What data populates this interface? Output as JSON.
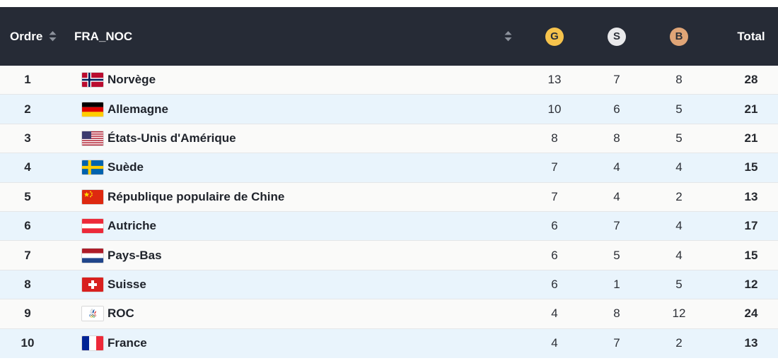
{
  "table": {
    "columns": {
      "rank_label": "Ordre",
      "country_label": "FRA_NOC",
      "gold_label": "G",
      "silver_label": "S",
      "bronze_label": "B",
      "total_label": "Total"
    },
    "colors": {
      "header_bg": "#262b36",
      "gold": "#f6c34c",
      "silver": "#e9e9eb",
      "bronze": "#e0a577",
      "row_odd_bg": "#fafaf9",
      "row_even_bg": "#e9f4fc"
    },
    "icons": {
      "sort": "sort-arrows-icon"
    },
    "rows": [
      {
        "rank": "1",
        "flag": "norway",
        "country": "Norvège",
        "gold": "13",
        "silver": "7",
        "bronze": "8",
        "total": "28"
      },
      {
        "rank": "2",
        "flag": "germany",
        "country": "Allemagne",
        "gold": "10",
        "silver": "6",
        "bronze": "5",
        "total": "21"
      },
      {
        "rank": "3",
        "flag": "usa",
        "country": "États-Unis d'Amérique",
        "gold": "8",
        "silver": "8",
        "bronze": "5",
        "total": "21"
      },
      {
        "rank": "4",
        "flag": "sweden",
        "country": "Suède",
        "gold": "7",
        "silver": "4",
        "bronze": "4",
        "total": "15"
      },
      {
        "rank": "5",
        "flag": "china",
        "country": "République populaire de Chine",
        "gold": "7",
        "silver": "4",
        "bronze": "2",
        "total": "13"
      },
      {
        "rank": "6",
        "flag": "austria",
        "country": "Autriche",
        "gold": "6",
        "silver": "7",
        "bronze": "4",
        "total": "17"
      },
      {
        "rank": "7",
        "flag": "netherlands",
        "country": "Pays-Bas",
        "gold": "6",
        "silver": "5",
        "bronze": "4",
        "total": "15"
      },
      {
        "rank": "8",
        "flag": "switzerland",
        "country": "Suisse",
        "gold": "6",
        "silver": "1",
        "bronze": "5",
        "total": "12"
      },
      {
        "rank": "9",
        "flag": "roc",
        "country": "ROC",
        "gold": "4",
        "silver": "8",
        "bronze": "12",
        "total": "24"
      },
      {
        "rank": "10",
        "flag": "france",
        "country": "France",
        "gold": "4",
        "silver": "7",
        "bronze": "2",
        "total": "13"
      }
    ]
  }
}
